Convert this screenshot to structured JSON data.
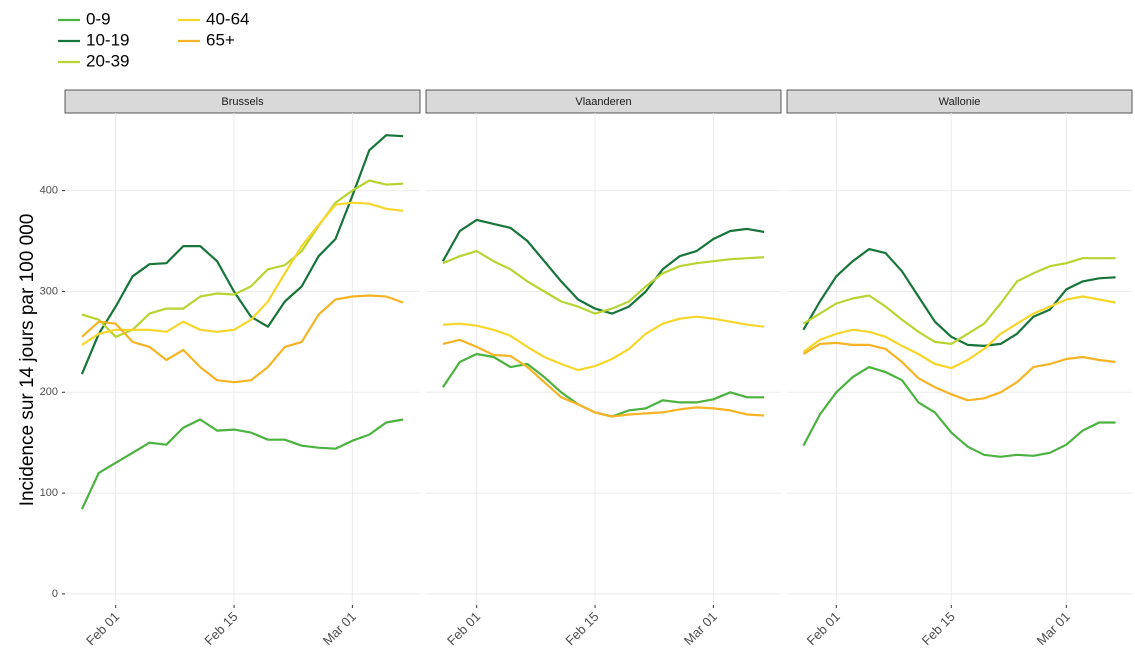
{
  "chart_data": [
    {
      "type": "line",
      "title": "Brussels",
      "ylabel": "Incidence sur 14 jours par 100 000",
      "x": [
        "01-28",
        "01-30",
        "02-01",
        "02-03",
        "02-05",
        "02-07",
        "02-09",
        "02-11",
        "02-13",
        "02-15",
        "02-17",
        "02-19",
        "02-21",
        "02-23",
        "02-25",
        "02-27",
        "03-01",
        "03-03",
        "03-05",
        "03-07"
      ],
      "xlim": [
        "01-26",
        "03-09"
      ],
      "xticks": [
        {
          "value": "02-01",
          "label": "Feb 01"
        },
        {
          "value": "02-15",
          "label": "Feb 15"
        },
        {
          "value": "03-01",
          "label": "Mar 01"
        }
      ],
      "ylim": [
        -11,
        477
      ],
      "yticks": [
        0,
        100,
        200,
        300,
        400
      ],
      "grid": true,
      "series": [
        {
          "name": "0-9",
          "color": "#4cb23f",
          "values": [
            84,
            120,
            130,
            140,
            150,
            148,
            165,
            173,
            162,
            163,
            160,
            153,
            153,
            147,
            145,
            144,
            152,
            158,
            170,
            173
          ]
        },
        {
          "name": "10-19",
          "color": "#17743a",
          "values": [
            218,
            258,
            285,
            315,
            327,
            328,
            345,
            345,
            330,
            300,
            275,
            265,
            290,
            305,
            335,
            352,
            395,
            440,
            455,
            454
          ]
        },
        {
          "name": "20-39",
          "color": "#b8d433",
          "values": [
            277,
            272,
            255,
            262,
            278,
            283,
            283,
            295,
            298,
            297,
            305,
            322,
            326,
            340,
            365,
            388,
            400,
            410,
            406,
            407
          ]
        },
        {
          "name": "40-64",
          "color": "#f6d62a",
          "values": [
            247,
            258,
            262,
            262,
            262,
            260,
            270,
            262,
            260,
            262,
            272,
            290,
            318,
            345,
            366,
            386,
            388,
            387,
            382,
            380
          ]
        },
        {
          "name": "65+",
          "color": "#f5b425",
          "values": [
            255,
            270,
            268,
            250,
            245,
            232,
            242,
            225,
            212,
            210,
            212,
            225,
            245,
            250,
            277,
            292,
            295,
            296,
            295,
            289
          ]
        }
      ]
    },
    {
      "type": "line",
      "title": "Vlaanderen",
      "x": [
        "01-28",
        "01-30",
        "02-01",
        "02-03",
        "02-05",
        "02-07",
        "02-09",
        "02-11",
        "02-13",
        "02-15",
        "02-17",
        "02-19",
        "02-21",
        "02-23",
        "02-25",
        "02-27",
        "03-01",
        "03-03",
        "03-05",
        "03-07"
      ],
      "xlim": [
        "01-26",
        "03-09"
      ],
      "xticks": [
        {
          "value": "02-01",
          "label": "Feb 01"
        },
        {
          "value": "02-15",
          "label": "Feb 15"
        },
        {
          "value": "03-01",
          "label": "Mar 01"
        }
      ],
      "ylim": [
        -11,
        477
      ],
      "yticks": [
        0,
        100,
        200,
        300,
        400
      ],
      "grid": true,
      "series": [
        {
          "name": "0-9",
          "color": "#4cb23f",
          "values": [
            205,
            230,
            238,
            235,
            225,
            228,
            215,
            200,
            188,
            180,
            176,
            182,
            184,
            192,
            190,
            190,
            193,
            200,
            195,
            195
          ]
        },
        {
          "name": "10-19",
          "color": "#17743a",
          "values": [
            330,
            360,
            371,
            367,
            363,
            350,
            330,
            310,
            292,
            283,
            278,
            285,
            300,
            322,
            335,
            340,
            352,
            360,
            362,
            359
          ]
        },
        {
          "name": "20-39",
          "color": "#b8d433",
          "values": [
            328,
            335,
            340,
            330,
            322,
            310,
            300,
            290,
            285,
            278,
            283,
            290,
            305,
            318,
            325,
            328,
            330,
            332,
            333,
            334
          ]
        },
        {
          "name": "40-64",
          "color": "#f6d62a",
          "values": [
            267,
            268,
            266,
            262,
            256,
            245,
            235,
            228,
            222,
            226,
            233,
            243,
            258,
            268,
            273,
            275,
            273,
            270,
            267,
            265
          ]
        },
        {
          "name": "65+",
          "color": "#f5b425",
          "values": [
            248,
            252,
            245,
            237,
            236,
            225,
            210,
            195,
            188,
            180,
            176,
            178,
            179,
            180,
            183,
            185,
            184,
            182,
            178,
            177
          ]
        }
      ]
    },
    {
      "type": "line",
      "title": "Wallonie",
      "x": [
        "01-28",
        "01-30",
        "02-01",
        "02-03",
        "02-05",
        "02-07",
        "02-09",
        "02-11",
        "02-13",
        "02-15",
        "02-17",
        "02-19",
        "02-21",
        "02-23",
        "02-25",
        "02-27",
        "03-01",
        "03-03",
        "03-05",
        "03-07"
      ],
      "xlim": [
        "01-26",
        "03-09"
      ],
      "xticks": [
        {
          "value": "02-01",
          "label": "Feb 01"
        },
        {
          "value": "02-15",
          "label": "Feb 15"
        },
        {
          "value": "03-01",
          "label": "Mar 01"
        }
      ],
      "ylim": [
        -11,
        477
      ],
      "yticks": [
        0,
        100,
        200,
        300,
        400
      ],
      "grid": true,
      "series": [
        {
          "name": "0-9",
          "color": "#4cb23f",
          "values": [
            147,
            178,
            200,
            215,
            225,
            220,
            212,
            190,
            180,
            160,
            146,
            138,
            136,
            138,
            137,
            140,
            148,
            162,
            170,
            170
          ]
        },
        {
          "name": "10-19",
          "color": "#17743a",
          "values": [
            262,
            290,
            315,
            330,
            342,
            338,
            320,
            295,
            270,
            255,
            247,
            246,
            248,
            258,
            275,
            282,
            302,
            310,
            313,
            314
          ]
        },
        {
          "name": "20-39",
          "color": "#b8d433",
          "values": [
            268,
            278,
            288,
            293,
            296,
            285,
            272,
            260,
            250,
            248,
            258,
            268,
            288,
            310,
            318,
            325,
            328,
            333,
            333,
            333
          ]
        },
        {
          "name": "40-64",
          "color": "#f6d62a",
          "values": [
            240,
            252,
            258,
            262,
            260,
            255,
            246,
            238,
            228,
            224,
            232,
            243,
            258,
            268,
            278,
            285,
            292,
            295,
            292,
            289
          ]
        },
        {
          "name": "65+",
          "color": "#f5b425",
          "values": [
            238,
            248,
            249,
            247,
            247,
            243,
            230,
            214,
            205,
            198,
            192,
            194,
            200,
            210,
            225,
            228,
            233,
            235,
            232,
            230
          ]
        }
      ]
    }
  ]
}
